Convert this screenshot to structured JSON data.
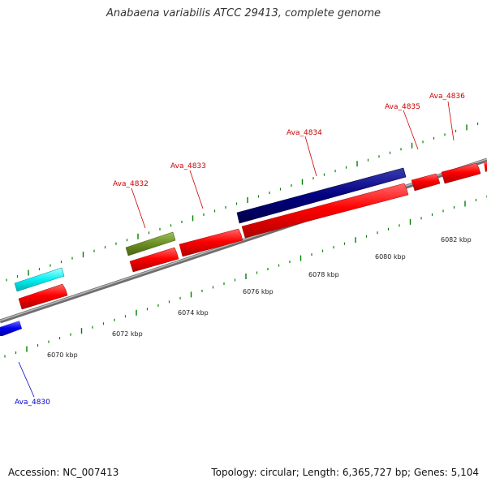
{
  "title": "Anabaena variabilis ATCC 29413, complete genome",
  "footer": {
    "accession": "Accession: NC_007413",
    "summary": "Topology: circular; Length: 6,365,727 bp; Genes: 5,104"
  },
  "colors": {
    "forward_gene": "#ff0000",
    "reverse_gene": "#0000ff",
    "navy_gene": "#000080",
    "olive_gene": "#6b8e23",
    "cyan_gene": "#00ffff",
    "backbone": "#888888",
    "tick": "#008000",
    "label_forward": "#cc0000",
    "label_reverse": "#0000cc"
  },
  "scale": {
    "ticks_kbp": [
      "6070 kbp",
      "6072 kbp",
      "6074 kbp",
      "6076 kbp",
      "6078 kbp",
      "6080 kbp",
      "6082 kbp"
    ]
  },
  "genes": [
    {
      "id": "Ava_4830",
      "label": "Ava_4830",
      "strand": "reverse",
      "color": "blue",
      "labelled": true
    },
    {
      "id": "cyan-gene",
      "label": "",
      "strand": "forward-upper",
      "color": "cyan",
      "labelled": false
    },
    {
      "id": "red-1",
      "label": "",
      "strand": "forward",
      "color": "red",
      "labelled": false
    },
    {
      "id": "Ava_4832",
      "label": "Ava_4832",
      "strand": "forward",
      "color": "red",
      "labelled": true
    },
    {
      "id": "olive-gene",
      "label": "",
      "strand": "forward-upper",
      "color": "olive",
      "labelled": false
    },
    {
      "id": "Ava_4833",
      "label": "Ava_4833",
      "strand": "forward",
      "color": "red",
      "labelled": true
    },
    {
      "id": "Ava_4834",
      "label": "Ava_4834",
      "strand": "forward",
      "color": "red",
      "labelled": true
    },
    {
      "id": "navy-gene",
      "label": "",
      "strand": "forward-upper",
      "color": "navy",
      "labelled": false
    },
    {
      "id": "Ava_4835",
      "label": "Ava_4835",
      "strand": "forward",
      "color": "red",
      "labelled": true
    },
    {
      "id": "Ava_4836",
      "label": "Ava_4836",
      "strand": "forward",
      "color": "red",
      "labelled": true
    }
  ]
}
